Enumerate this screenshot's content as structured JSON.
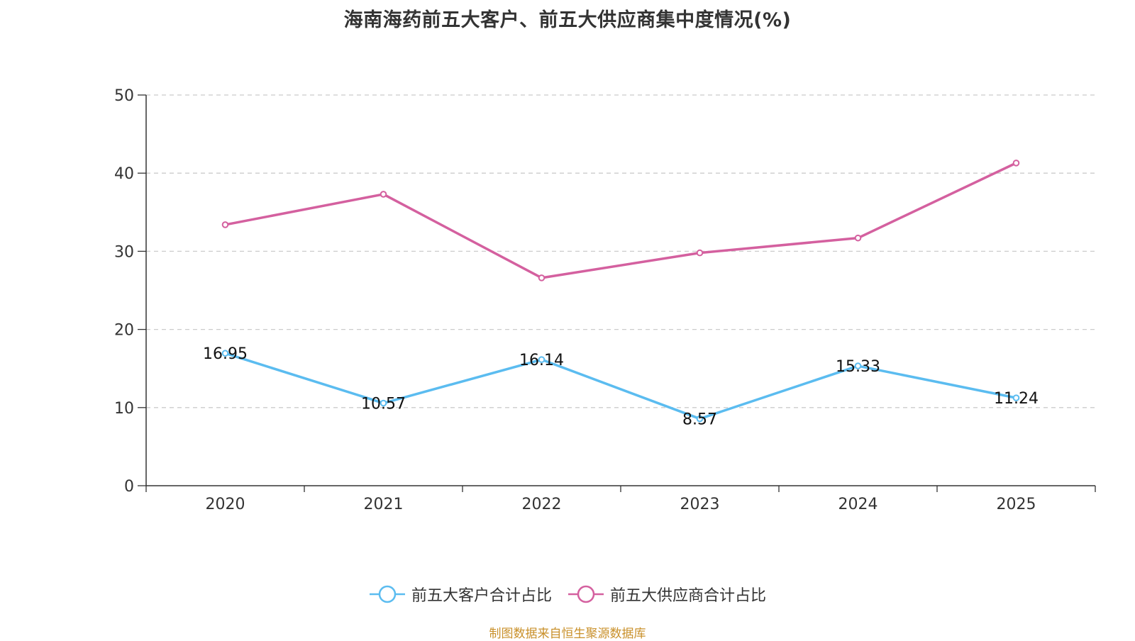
{
  "colors": {
    "series_customers": "#5bbcf0",
    "series_suppliers": "#d4609f",
    "axis": "#333333",
    "grid": "#cccccc",
    "source": "#c9902a"
  },
  "chart_data": {
    "type": "line",
    "title": "海南海药前五大客户、前五大供应商集中度情况(%)",
    "categories": [
      "2020",
      "2021",
      "2022",
      "2023",
      "2024",
      "2025"
    ],
    "ylim": [
      0,
      50
    ],
    "yticks": [
      0,
      10,
      20,
      30,
      40,
      50
    ],
    "ytick_labels": [
      "0",
      "10",
      "20",
      "30",
      "40",
      "50"
    ],
    "grid": true,
    "legend_position": "bottom-center",
    "series": [
      {
        "name": "前五大客户合计占比",
        "values": [
          16.95,
          10.57,
          16.14,
          8.57,
          15.33,
          11.24
        ],
        "data_labels": [
          "16.95",
          "10.57",
          "16.14",
          "8.57",
          "15.33",
          "11.24"
        ],
        "show_labels": true
      },
      {
        "name": "前五大供应商合计占比",
        "values": [
          33.4,
          37.3,
          26.6,
          29.8,
          31.7,
          41.3
        ],
        "show_labels": false
      }
    ]
  },
  "legend": {
    "items": [
      "前五大客户合计占比",
      "前五大供应商合计占比"
    ]
  },
  "source": "制图数据来自恒生聚源数据库"
}
